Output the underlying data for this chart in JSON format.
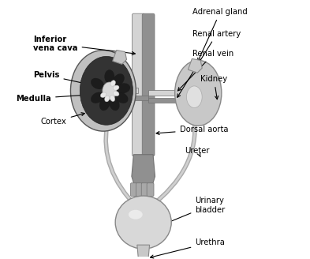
{
  "bg_color": "#ffffff",
  "gray_light": "#d4d4d4",
  "gray_mid": "#a8a8a8",
  "gray_dark": "#707070",
  "gray_vdark": "#404040",
  "gray_tube": "#909090",
  "gray_tube_dark": "#606060",
  "kidney_outer": "#c0c0c0",
  "kidney_cortex": "#b0b0b0",
  "kidney_medulla": "#282828",
  "kidney_pelvis": "#c8c8c8",
  "bladder_color": "#d8d8d8",
  "text_color": "#000000",
  "labels": {
    "adrenal_gland": "Adrenal gland",
    "renal_artery": "Renal artery",
    "renal_vein": "Renal vein",
    "inferior_vena_cava": "Inferior\nvena cava",
    "pelvis": "Pelvis",
    "medulla": "Medulla",
    "cortex": "Cortex",
    "kidney": "Kidney",
    "dorsal_aorta": "Dorsal aorta",
    "ureter": "Ureter",
    "urinary_bladder": "Urinary\nbladder",
    "urethra": "Urethra"
  },
  "figsize": [
    3.93,
    3.28
  ],
  "dpi": 100
}
